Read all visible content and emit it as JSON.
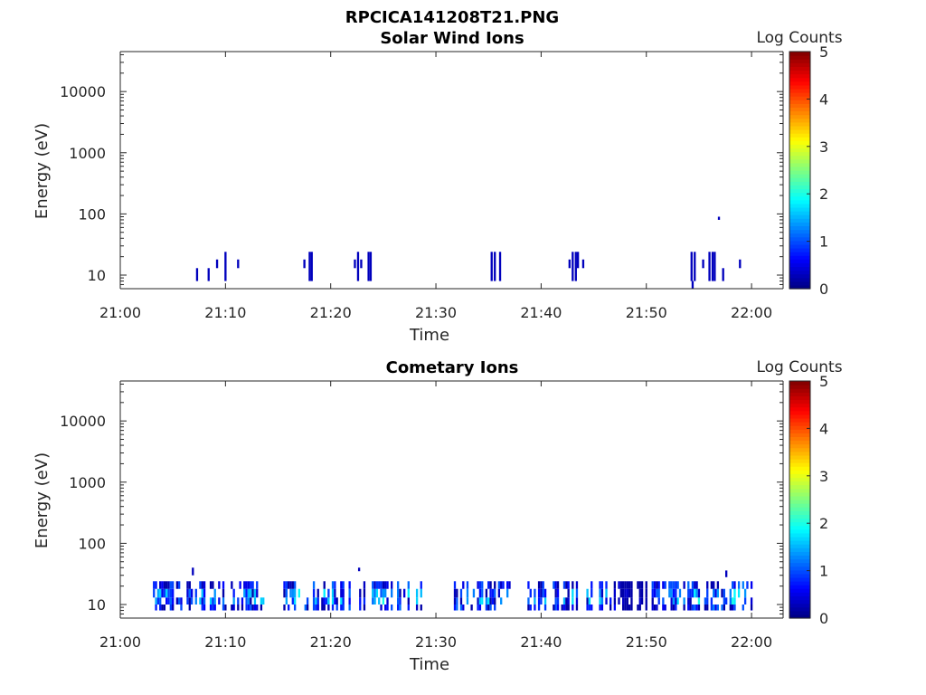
{
  "figure": {
    "title": "RPCICA141208T21.PNG"
  },
  "chart_data": [
    {
      "type": "heatmap",
      "title": "Solar Wind Ions",
      "xlabel": "Time",
      "ylabel": "Energy (eV)",
      "yscale": "log",
      "ylim": [
        6,
        45000
      ],
      "xlim": [
        "21:00",
        "22:03"
      ],
      "xticks": [
        "21:00",
        "21:10",
        "21:20",
        "21:30",
        "21:40",
        "21:50",
        "22:00"
      ],
      "yticks": [
        10,
        100,
        1000,
        10000
      ],
      "colorbar": {
        "label": "Log Counts",
        "range": [
          0,
          5
        ],
        "ticks": [
          0,
          1,
          2,
          3,
          4,
          5
        ],
        "colormap": "jet"
      },
      "cells_note": "each cell: [time(min after 21:00), energy_low(eV), energy_high(eV), log_counts]",
      "cells": [
        [
          7.2,
          8,
          13,
          0.3
        ],
        [
          8.3,
          8,
          13,
          0.3
        ],
        [
          9.1,
          13,
          18,
          0.3
        ],
        [
          9.9,
          8,
          24,
          0.3
        ],
        [
          11.1,
          13,
          18,
          0.3
        ],
        [
          17.4,
          13,
          18,
          0.3
        ],
        [
          17.9,
          8,
          24,
          0.3
        ],
        [
          18.1,
          8,
          24,
          0.3
        ],
        [
          22.2,
          13,
          18,
          0.3
        ],
        [
          22.5,
          8,
          24,
          0.3
        ],
        [
          22.8,
          13,
          18,
          0.3
        ],
        [
          23.5,
          8,
          24,
          0.3
        ],
        [
          23.7,
          8,
          24,
          0.3
        ],
        [
          35.2,
          8,
          24,
          0.3
        ],
        [
          35.5,
          8,
          24,
          0.3
        ],
        [
          36.0,
          8,
          24,
          0.3
        ],
        [
          42.6,
          13,
          18,
          0.3
        ],
        [
          42.9,
          8,
          24,
          0.3
        ],
        [
          43.2,
          8,
          24,
          0.3
        ],
        [
          43.4,
          13,
          24,
          0.3
        ],
        [
          43.9,
          13,
          18,
          0.3
        ],
        [
          54.2,
          8,
          24,
          0.3
        ],
        [
          54.5,
          8,
          24,
          0.3
        ],
        [
          54.3,
          6,
          8,
          0.3
        ],
        [
          55.3,
          13,
          18,
          0.3
        ],
        [
          55.9,
          8,
          24,
          0.3
        ],
        [
          56.2,
          8,
          24,
          0.3
        ],
        [
          56.4,
          8,
          24,
          0.3
        ],
        [
          56.8,
          80,
          90,
          0.3
        ],
        [
          57.2,
          8,
          13,
          0.3
        ],
        [
          58.8,
          13,
          18,
          0.3
        ]
      ]
    },
    {
      "type": "heatmap",
      "title": "Cometary Ions",
      "xlabel": "Time",
      "ylabel": "Energy (eV)",
      "yscale": "log",
      "ylim": [
        6,
        45000
      ],
      "xlim": [
        "21:00",
        "22:03"
      ],
      "xticks": [
        "21:00",
        "21:10",
        "21:20",
        "21:30",
        "21:40",
        "21:50",
        "22:00"
      ],
      "yticks": [
        10,
        100,
        1000,
        10000
      ],
      "colorbar": {
        "label": "Log Counts",
        "range": [
          0,
          5
        ],
        "ticks": [
          0,
          1,
          2,
          3,
          4,
          5
        ],
        "colormap": "jet"
      },
      "bursts_note": "time intervals (min after 21:00) with detected counts: [start, end, peak log_counts]",
      "bursts": [
        [
          2.9,
          13.5,
          1.8
        ],
        [
          15.5,
          28.5,
          2.0
        ],
        [
          31.5,
          37.5,
          1.9
        ],
        [
          38.5,
          47.5,
          1.8
        ],
        [
          47.5,
          50.0,
          0.4
        ],
        [
          50.5,
          60.5,
          2.1
        ]
      ],
      "energy_range_eV": [
        8,
        24
      ],
      "outliers": [
        [
          6.8,
          30,
          40,
          0.3
        ],
        [
          22.6,
          35,
          40,
          0.3
        ],
        [
          57.5,
          28,
          36,
          0.3
        ]
      ]
    }
  ]
}
